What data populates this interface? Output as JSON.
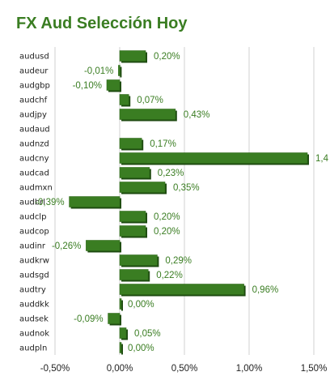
{
  "chart_data": {
    "type": "bar",
    "orientation": "horizontal",
    "title": "FX Aud Selección Hoy",
    "categories": [
      "audusd",
      "audeur",
      "audgbp",
      "audchf",
      "audjpy",
      "audaud",
      "audnzd",
      "audcny",
      "audcad",
      "audmxn",
      "audbrl",
      "audclp",
      "audcop",
      "audinr",
      "audkrw",
      "audsgd",
      "audtry",
      "auddkk",
      "audsek",
      "audnok",
      "audpln"
    ],
    "values": [
      0.2,
      -0.01,
      -0.1,
      0.07,
      0.43,
      null,
      0.17,
      1.45,
      0.23,
      0.35,
      -0.39,
      0.2,
      0.2,
      -0.26,
      0.29,
      0.22,
      0.96,
      0.0,
      -0.09,
      0.05,
      0.0
    ],
    "value_labels": [
      "0,20%",
      "-0,01%",
      "-0,10%",
      "0,07%",
      "0,43%",
      "",
      "0,17%",
      "1,4",
      "0,23%",
      "0,35%",
      "-0,39%",
      "0,20%",
      "0,20%",
      "-0,26%",
      "0,29%",
      "0,22%",
      "0,96%",
      "0,00%",
      "-0,09%",
      "0,05%",
      "0,00%"
    ],
    "xlim": [
      -0.5,
      1.5
    ],
    "x_ticks": [
      -0.5,
      0,
      0.5,
      1.0,
      1.5
    ],
    "x_tick_labels": [
      "-0,50%",
      "0,00%",
      "0,50%",
      "1,00%",
      "1,50%"
    ],
    "xlabel": "",
    "ylabel": "",
    "grid": "vertical",
    "legend": "none",
    "colors": {
      "bar": "#3a7d22",
      "bar_dark": "#1d4a10",
      "grid": "#d0d0d0",
      "title": "#3a7d22"
    }
  }
}
